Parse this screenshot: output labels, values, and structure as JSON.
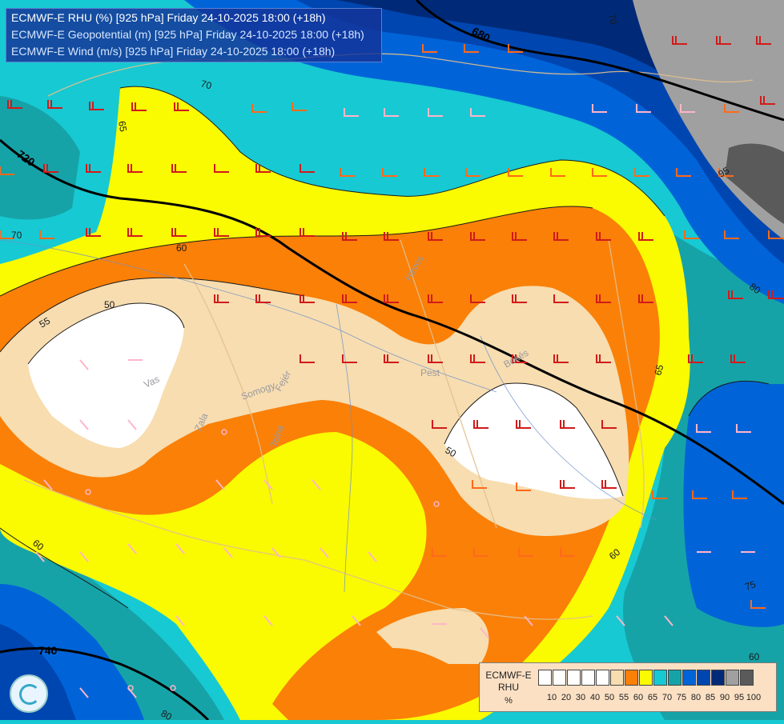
{
  "titles": [
    "ECMWF-E RHU (%) [925 hPa] Friday 24-10-2025 18:00 (+18h)",
    "ECMWF-E Geopotential (m) [925 hPa] Friday 24-10-2025 18:00 (+18h)",
    "ECMWF-E Wind (m/s) [925 hPa] Friday 24-10-2025 18:00 (+18h)"
  ],
  "legend": {
    "title": "ECMWF-E\nRHU",
    "unit": "%",
    "values": [
      "10",
      "20",
      "30",
      "40",
      "50",
      "55",
      "60",
      "65",
      "70",
      "75",
      "80",
      "85",
      "90",
      "95",
      "100"
    ],
    "colors": [
      "#ffffff",
      "#ffffff",
      "#ffffff",
      "#ffffff",
      "#ffffff",
      "#f7ddb0",
      "#fa8008",
      "#fafa00",
      "#17c9d2",
      "#16a3a8",
      "#0064d8",
      "#0046b0",
      "#002a78",
      "#a0a0a0",
      "#5a5a5a"
    ]
  },
  "colors": {
    "rh_50": "#ffffff",
    "rh_55": "#f7ddb0",
    "rh_60": "#fa8008",
    "rh_65": "#fafa00",
    "rh_70": "#17c9d2",
    "rh_75": "#16a3a8",
    "rh_80": "#0064d8",
    "rh_85": "#0046b0",
    "rh_90": "#002a78",
    "rh_95": "#a0a0a0",
    "rh_100": "#5a5a5a",
    "wind_strong": "#d11b1b",
    "wind_medium": "#ff6a1a",
    "wind_light": "#ffb5c8",
    "border": "#e3c08e"
  },
  "isohypses": [
    "680",
    "720",
    "740"
  ],
  "rh_contour_labels": [
    "70",
    "65",
    "70",
    "60",
    "50",
    "55",
    "50",
    "60",
    "65",
    "60",
    "60",
    "80",
    "95",
    "80",
    "75",
    "70"
  ],
  "place_labels": [
    "Heves",
    "Békés",
    "Pest",
    "Vas",
    "Somogy",
    "Fejér",
    "Tolna",
    "Zala"
  ],
  "logo": "ogimet-logo"
}
